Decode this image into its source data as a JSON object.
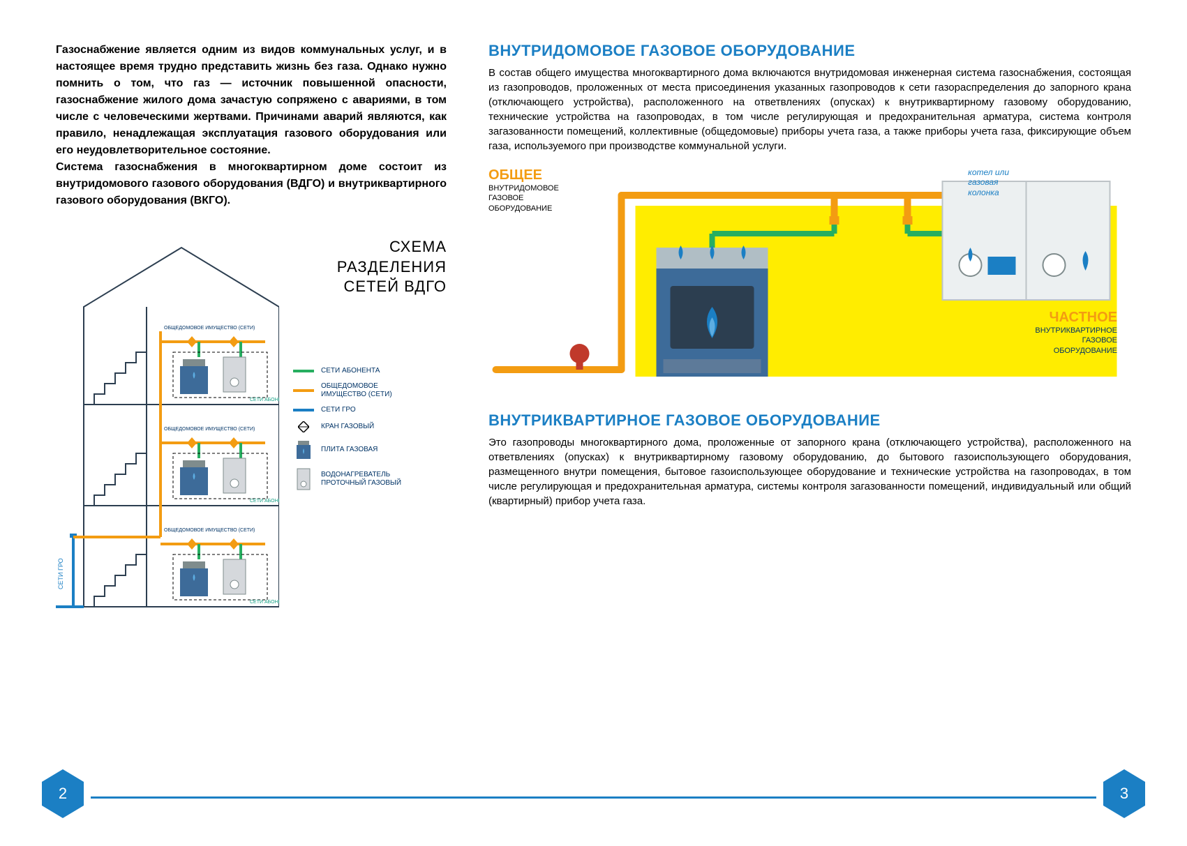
{
  "colors": {
    "primary_blue": "#1b7fc4",
    "orange": "#f39c12",
    "green": "#27ae60",
    "dark_blue": "#2c3e50",
    "teal": "#16a085",
    "yellow_bg": "#ffed00",
    "red": "#c0392b",
    "light_blue": "#5dade2",
    "steel": "#7f8c8d",
    "icon_blue": "#3d6b99"
  },
  "intro": "Газоснабжение является одним из видов коммунальных услуг, и в настоящее время трудно представить жизнь без газа. Однако нужно помнить о том, что газ — источник повышенной опасности, газоснабжение жилого дома зачастую сопряжено с авариями, в том числе с человеческими жертвами. Причинами аварий являются, как правило, ненадлежащая эксплуатация газового оборудования или его неудовлетворительное состояние.\nСистема газоснабжения в многоквартирном доме состоит из внутридомового газового оборудования (ВДГО) и внутриквартирного газового оборудования (ВКГО).",
  "house_diagram": {
    "title": "СХЕМА\nРАЗДЕЛЕНИЯ\nСЕТЕЙ ВДГО",
    "gro_label": "СЕТИ ГРО",
    "common_label": "ОБЩЕДОМОВОЕ ИМУЩЕСТВО (СЕТИ)",
    "subscriber_label": "СЕТИ АБОНЕНТОВ",
    "legend": [
      {
        "type": "line",
        "color": "#27ae60",
        "label": "СЕТИ АБОНЕНТА"
      },
      {
        "type": "line",
        "color": "#f39c12",
        "label": "ОБЩЕДОМОВОЕ\nИМУЩЕСТВО (СЕТИ)"
      },
      {
        "type": "line",
        "color": "#1b7fc4",
        "label": "СЕТИ ГРО"
      },
      {
        "type": "icon",
        "icon": "valve",
        "label": "КРАН ГАЗОВЫЙ"
      },
      {
        "type": "icon",
        "icon": "stove",
        "label": "ПЛИТА ГАЗОВАЯ"
      },
      {
        "type": "icon",
        "icon": "heater",
        "label": "ВОДОНАГРЕВАТЕЛЬ\nПРОТОЧНЫЙ ГАЗОВЫЙ"
      }
    ]
  },
  "section1": {
    "title": "ВНУТРИДОМОВОЕ ГАЗОВОЕ ОБОРУДОВАНИЕ",
    "body": "В состав общего имущества многоквартирного дома включаются внутридомовая инженерная система газоснабжения, состоящая из газопроводов, проложенных от места присоединения указанных газопроводов к сети газораспределения до запорного крана (отключающего устройства), расположенного на ответвлениях (опусках) к внутриквартирному газовому оборудованию, технические устройства на газопроводах, в том числе регулирующая и предохранительная арматура, система контроля загазованности помещений, коллективные (общедомовые) приборы учета газа, а также приборы учета газа, фиксирующие объем газа, используемого при производстве коммунальной услуги."
  },
  "infographic": {
    "common": {
      "title": "ОБЩЕЕ",
      "sub": "ВНУТРИДОМОВОЕ\nГАЗОВОЕ\nОБОРУДОВАНИЕ"
    },
    "boiler": "котел или\nгазовая\nколонка",
    "private": {
      "title": "ЧАСТНОЕ",
      "sub": "ВНУТРИКВАРТИРНОЕ\nГАЗОВОЕ\nОБОРУДОВАНИЕ"
    }
  },
  "section2": {
    "title": "ВНУТРИКВАРТИРНОЕ ГАЗОВОЕ ОБОРУДОВАНИЕ",
    "body": "Это газопроводы многоквартирного дома, проложенные от запорного крана (отключающего устройства), расположенного на ответвлениях (опусках) к внутриквартирному газовому оборудованию, до бытового газоиспользующего оборудования, размещенного внутри помещения, бытовое газоиспользующее оборудование и технические устройства на газопроводах, в том числе регулирующая и предохранительная арматура, системы контроля загазованности помещений, индивидуальный или общий (квартирный) прибор учета газа."
  },
  "page_left": "2",
  "page_right": "3"
}
